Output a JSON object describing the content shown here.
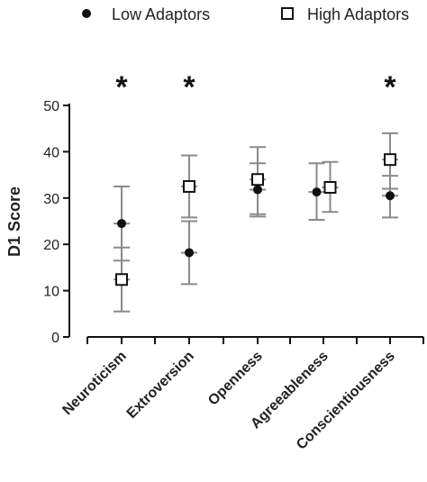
{
  "chart_data": {
    "type": "scatter",
    "categories": [
      "Neuroticism",
      "Extroversion",
      "Openness",
      "Agreeableness",
      "Conscientiousness"
    ],
    "ylabel": "D1 Score",
    "xlabel": "",
    "ylim": [
      0,
      50
    ],
    "yticks": [
      0,
      10,
      20,
      30,
      40,
      50
    ],
    "legend": "top",
    "series": [
      {
        "name": "Low Adaptors",
        "marker": "filled-circle",
        "color": "#111111",
        "values": [
          24.5,
          18.2,
          31.8,
          31.3,
          30.5
        ],
        "err_low": [
          16.5,
          11.4,
          26.5,
          25.3,
          25.8
        ],
        "err_high": [
          32.5,
          25.0,
          37.5,
          37.5,
          34.8
        ]
      },
      {
        "name": "High Adaptors",
        "marker": "open-square",
        "color": "#111111",
        "values": [
          12.4,
          32.5,
          34.0,
          32.3,
          38.3
        ],
        "err_low": [
          5.5,
          25.8,
          26.0,
          27.0,
          32.0
        ],
        "err_high": [
          19.3,
          39.2,
          41.0,
          37.8,
          44.0
        ]
      }
    ],
    "significance": [
      "*",
      "*",
      "",
      "",
      "*"
    ]
  }
}
